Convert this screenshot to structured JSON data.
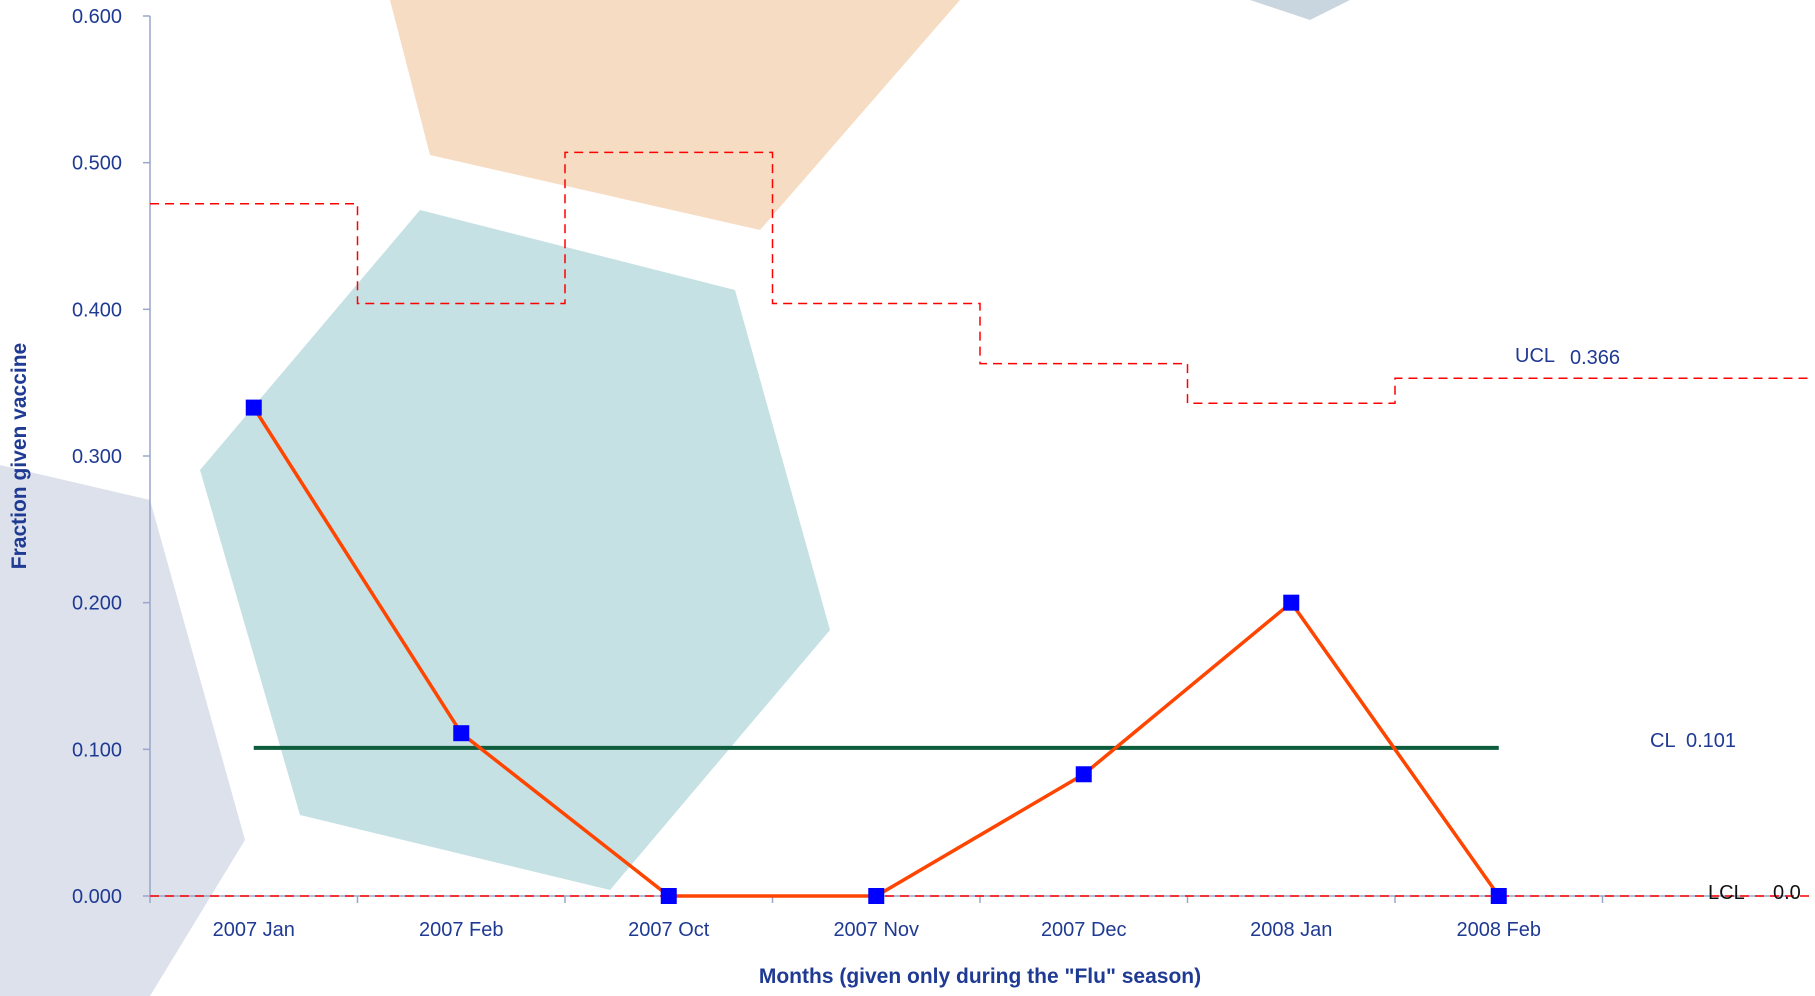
{
  "chart_data": {
    "type": "line",
    "title": "",
    "xlabel": "Months (given only during the \"Flu\" season)",
    "ylabel": "Fraction given vaccine",
    "categories": [
      "2007 Jan",
      "2007 Feb",
      "2007 Oct",
      "2007 Nov",
      "2007 Dec",
      "2008 Jan",
      "2008 Feb"
    ],
    "ylim": [
      0,
      0.6
    ],
    "yticks": [
      "0.000",
      "0.100",
      "0.200",
      "0.300",
      "0.400",
      "0.500",
      "0.600"
    ],
    "grid": false,
    "series": [
      {
        "values": [
          0.333,
          0.111,
          0.0,
          0.0,
          0.083,
          0.2,
          0.0
        ],
        "color": "#ff4500",
        "marker_color": "#0000ff"
      }
    ],
    "center_line": {
      "value": 0.101,
      "color": "#0d5c3c"
    },
    "ucl_steps": {
      "values": [
        0.472,
        0.404,
        0.507,
        0.404,
        0.363,
        0.336,
        0.353
      ],
      "color": "#ff0000",
      "style": "dashed"
    },
    "lcl": {
      "value": 0.0,
      "color": "#ff0000",
      "style": "dashed"
    },
    "annotations": {
      "ucl_label": "UCL",
      "ucl_value": "0.366",
      "cl_label": "CL",
      "cl_value": "0.101",
      "lcl_label": "LCL",
      "lcl_value": "0.0"
    }
  }
}
